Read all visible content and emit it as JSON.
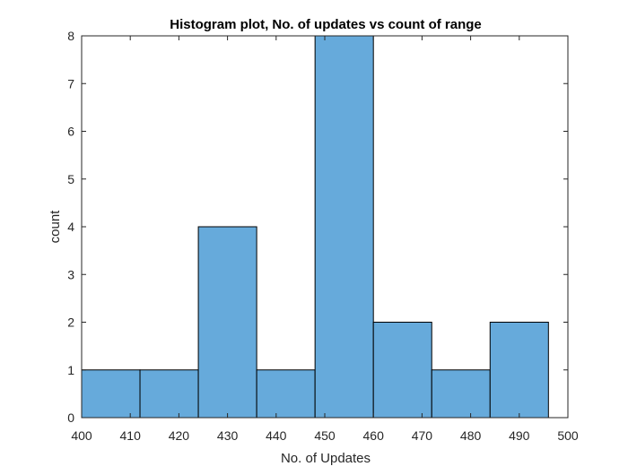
{
  "chart_data": {
    "type": "bar",
    "title": "Histogram plot, No. of updates vs count of range",
    "xlabel": "No. of Updates",
    "ylabel": "count",
    "xlim": [
      400,
      500
    ],
    "ylim": [
      0,
      8
    ],
    "xticks": [
      400,
      410,
      420,
      430,
      440,
      450,
      460,
      470,
      480,
      490,
      500
    ],
    "yticks": [
      0,
      1,
      2,
      3,
      4,
      5,
      6,
      7,
      8
    ],
    "bin_edges": [
      400,
      412,
      424,
      436,
      448,
      460,
      472,
      484,
      496
    ],
    "values": [
      1,
      1,
      4,
      1,
      8,
      2,
      1,
      2
    ],
    "bar_color": "#66AADB",
    "edge_color": "#000000",
    "grid": false
  }
}
